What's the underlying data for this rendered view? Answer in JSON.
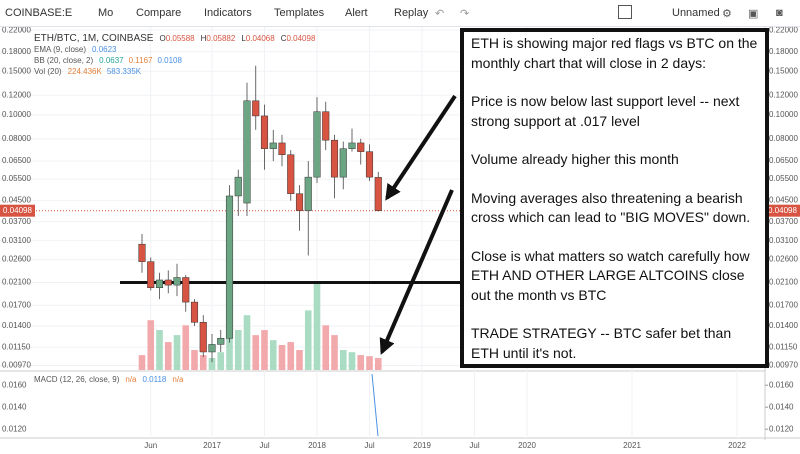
{
  "toolbar": {
    "symbol": "COINBASE:E",
    "interval": "Mo",
    "items": [
      "Compare",
      "Indicators",
      "Templates",
      "Alert",
      "Replay"
    ],
    "layout_name": "Unnamed"
  },
  "chart_data": {
    "type": "candlestick",
    "title": "ETH/BTC, 1M, COINBASE",
    "ohlc_prefixes": [
      "O",
      "H",
      "L",
      "C"
    ],
    "indicators": [
      {
        "name": "EMA (9, close)",
        "values": [
          0.0623
        ]
      },
      {
        "name": "BB (20, close, 2)",
        "values": [
          0.0637,
          0.1167,
          0.0108
        ]
      },
      {
        "name": "Vol (20)",
        "values": [
          "224.436K",
          "583.335K"
        ]
      }
    ],
    "x": [
      "2016-05",
      "2016-06",
      "2016-07",
      "2016-08",
      "2016-09",
      "2016-10",
      "2016-11",
      "2016-12",
      "2017-01",
      "2017-02",
      "2017-03",
      "2017-04",
      "2017-05",
      "2017-06",
      "2017-07",
      "2017-08",
      "2017-09",
      "2017-10",
      "2017-11",
      "2017-12",
      "2018-01",
      "2018-02",
      "2018-03",
      "2018-04",
      "2018-05",
      "2018-06",
      "2018-07",
      "2018-08"
    ],
    "open": [
      0.03,
      0.0255,
      0.02,
      0.0215,
      0.0205,
      0.022,
      0.0175,
      0.0145,
      0.011,
      0.0118,
      0.0125,
      0.047,
      0.044,
      0.114,
      0.099,
      0.073,
      0.077,
      0.069,
      0.048,
      0.041,
      0.056,
      0.103,
      0.079,
      0.056,
      0.073,
      0.077,
      0.071,
      0.05588
    ],
    "high": [
      0.033,
      0.0265,
      0.023,
      0.0235,
      0.025,
      0.0225,
      0.018,
      0.0155,
      0.013,
      0.0135,
      0.052,
      0.06,
      0.135,
      0.158,
      0.11,
      0.087,
      0.083,
      0.072,
      0.052,
      0.065,
      0.118,
      0.113,
      0.083,
      0.078,
      0.088,
      0.08,
      0.076,
      0.05882
    ],
    "low": [
      0.023,
      0.0195,
      0.018,
      0.019,
      0.0185,
      0.016,
      0.014,
      0.0105,
      0.01,
      0.011,
      0.012,
      0.039,
      0.039,
      0.087,
      0.06,
      0.065,
      0.062,
      0.045,
      0.034,
      0.027,
      0.053,
      0.072,
      0.046,
      0.05,
      0.071,
      0.063,
      0.054,
      0.04068
    ],
    "close": [
      0.0255,
      0.02,
      0.0215,
      0.0205,
      0.022,
      0.0175,
      0.0145,
      0.011,
      0.0118,
      0.0125,
      0.047,
      0.056,
      0.114,
      0.099,
      0.073,
      0.077,
      0.069,
      0.048,
      0.041,
      0.056,
      0.103,
      0.079,
      0.056,
      0.073,
      0.077,
      0.071,
      0.056,
      0.04098
    ],
    "volume": [
      280000,
      935000,
      750000,
      525000,
      655000,
      840000,
      375000,
      280000,
      225000,
      335000,
      1120000,
      750000,
      1030000,
      655000,
      750000,
      560000,
      470000,
      525000,
      375000,
      1120000,
      1650000,
      840000,
      655000,
      375000,
      335000,
      280000,
      260000,
      224436
    ],
    "volume_ylim": [
      0,
      6500000
    ],
    "up_color": "#6ba583",
    "down_color": "#d75442",
    "up_volume_color": "#a9dcc3",
    "down_volume_color": "#f2a9ac",
    "log_scale": true,
    "ylim": [
      0.0093,
      0.233
    ],
    "yticks": [
      {
        "value": 0.22,
        "label": "0.22000"
      },
      {
        "value": 0.18,
        "label": "0.18000"
      },
      {
        "value": 0.15,
        "label": "0.15000"
      },
      {
        "value": 0.12,
        "label": "0.12000"
      },
      {
        "value": 0.1,
        "label": "0.10000"
      },
      {
        "value": 0.08,
        "label": "0.08000"
      },
      {
        "value": 0.065,
        "label": "0.06500"
      },
      {
        "value": 0.055,
        "label": "0.05500"
      },
      {
        "value": 0.045,
        "label": "0.04500"
      },
      {
        "value": 0.037,
        "label": "0.03700"
      },
      {
        "value": 0.031,
        "label": "0.03100"
      },
      {
        "value": 0.026,
        "label": "0.02600"
      },
      {
        "value": 0.021,
        "label": "0.02100"
      },
      {
        "value": 0.017,
        "label": "0.01700"
      },
      {
        "value": 0.014,
        "label": "0.01400"
      },
      {
        "value": 0.0115,
        "label": "0.01150"
      },
      {
        "value": 0.0097,
        "label": "0.00970"
      }
    ],
    "xticks": [
      {
        "value": "2016-06",
        "label": "Jun"
      },
      {
        "value": "2017-01",
        "label": "2017"
      },
      {
        "value": "2017-07",
        "label": "Jul"
      },
      {
        "value": "2018-01",
        "label": "2018"
      },
      {
        "value": "2018-07",
        "label": "Jul"
      },
      {
        "value": "2019-01",
        "label": "2019"
      },
      {
        "value": "2019-07",
        "label": "Jul"
      },
      {
        "value": "2020-01",
        "label": "2020"
      },
      {
        "value": "2021-01",
        "label": "2021"
      },
      {
        "value": "2022-01",
        "label": "2022"
      }
    ],
    "support_level": 0.021,
    "macd": {
      "name": "MACD (12, 26, close, 9)",
      "values": [
        "n/a",
        0.0118,
        "n/a"
      ],
      "ylim": [
        0.0112,
        0.0172
      ],
      "yticks": [
        {
          "value": 0.016,
          "label": "0.0160"
        },
        {
          "value": 0.014,
          "label": "0.0140"
        },
        {
          "value": 0.012,
          "label": "0.0120"
        }
      ]
    },
    "annotation": [
      "ETH is showing major red flags vs BTC on the monthly chart that will close in 2 days:",
      "Price is now below last support level -- next strong support at .017 level",
      "Volume already higher this month",
      "Moving averages also threatening a bearish cross which can lead to \"BIG MOVES\" down.",
      "Close is what matters so watch carefully how ETH AND OTHER LARGE ALTCOINS close out the month vs BTC",
      "TRADE STRATEGY -- BTC safer bet than ETH until it's not."
    ]
  }
}
